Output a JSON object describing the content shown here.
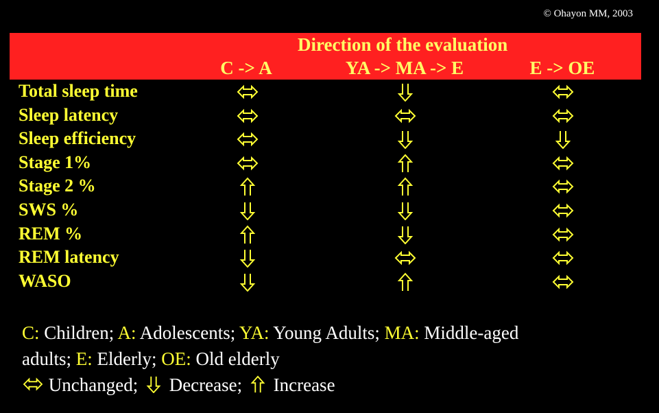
{
  "copyright": "© Ohayon MM, 2003",
  "header": {
    "title": "Direction of the evaluation",
    "columns": [
      "C -> A",
      "YA -> MA -> E",
      "E -> OE"
    ]
  },
  "colors": {
    "banner": "#ff2020",
    "label": "#ffff33",
    "header_text": "#ffff66",
    "text": "#ffffff",
    "background": "#000000"
  },
  "rows": [
    {
      "label": "Total sleep time",
      "values": [
        "unchanged",
        "decrease",
        "unchanged"
      ]
    },
    {
      "label": "Sleep latency",
      "values": [
        "unchanged",
        "unchanged",
        "unchanged"
      ]
    },
    {
      "label": "Sleep efficiency",
      "values": [
        "unchanged",
        "decrease",
        "decrease"
      ]
    },
    {
      "label": "Stage 1%",
      "values": [
        "unchanged",
        "increase",
        "unchanged"
      ]
    },
    {
      "label": "Stage 2 %",
      "values": [
        "increase",
        "increase",
        "unchanged"
      ]
    },
    {
      "label": "SWS %",
      "values": [
        "decrease",
        "decrease",
        "unchanged"
      ]
    },
    {
      "label": "REM %",
      "values": [
        "increase",
        "decrease",
        "unchanged"
      ]
    },
    {
      "label": "REM latency",
      "values": [
        "decrease",
        "unchanged",
        "unchanged"
      ]
    },
    {
      "label": "WASO",
      "values": [
        "decrease",
        "increase",
        "unchanged"
      ]
    }
  ],
  "legend": {
    "line1": [
      {
        "abbr": "C:",
        "text": " Children; "
      },
      {
        "abbr": "A:",
        "text": " Adolescents; "
      },
      {
        "abbr": "YA:",
        "text": " Young Adults; "
      },
      {
        "abbr": "MA:",
        "text": " Middle-aged"
      }
    ],
    "line2": [
      {
        "abbr": "",
        "text": "adults; "
      },
      {
        "abbr": "E:",
        "text": " Elderly; "
      },
      {
        "abbr": "OE:",
        "text": " Old elderly"
      }
    ],
    "line3": [
      {
        "icon": "unchanged",
        "text": " Unchanged; "
      },
      {
        "icon": "decrease",
        "text": " Decrease; "
      },
      {
        "icon": "increase",
        "text": " Increase"
      }
    ]
  }
}
